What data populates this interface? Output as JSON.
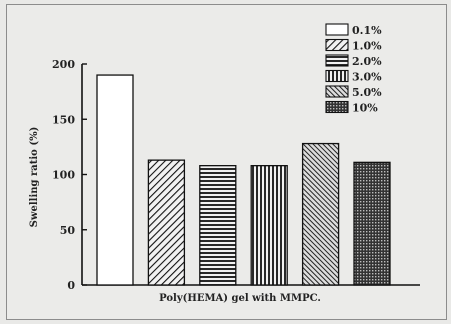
{
  "chart_data": {
    "type": "bar",
    "categories": [
      "0.1%",
      "1.0%",
      "2.0%",
      "3.0%",
      "5.0%",
      "10%"
    ],
    "values": [
      190,
      113,
      108,
      108,
      128,
      111
    ],
    "xlabel": "Poly(HEMA) gel with MMPC.",
    "ylabel": "Swelling ratio (%)",
    "ylim": [
      0,
      200
    ],
    "yticks": [
      0,
      50,
      100,
      150,
      200
    ],
    "grid": false,
    "legend": {
      "placement": "top-right",
      "entries": [
        "0.1%",
        "1.0%",
        "2.0%",
        "3.0%",
        "5.0%",
        "10%"
      ]
    },
    "patterns": [
      "blank",
      "diagonal",
      "horizontal",
      "vertical",
      "diagonal-dense",
      "crosshatch"
    ]
  }
}
